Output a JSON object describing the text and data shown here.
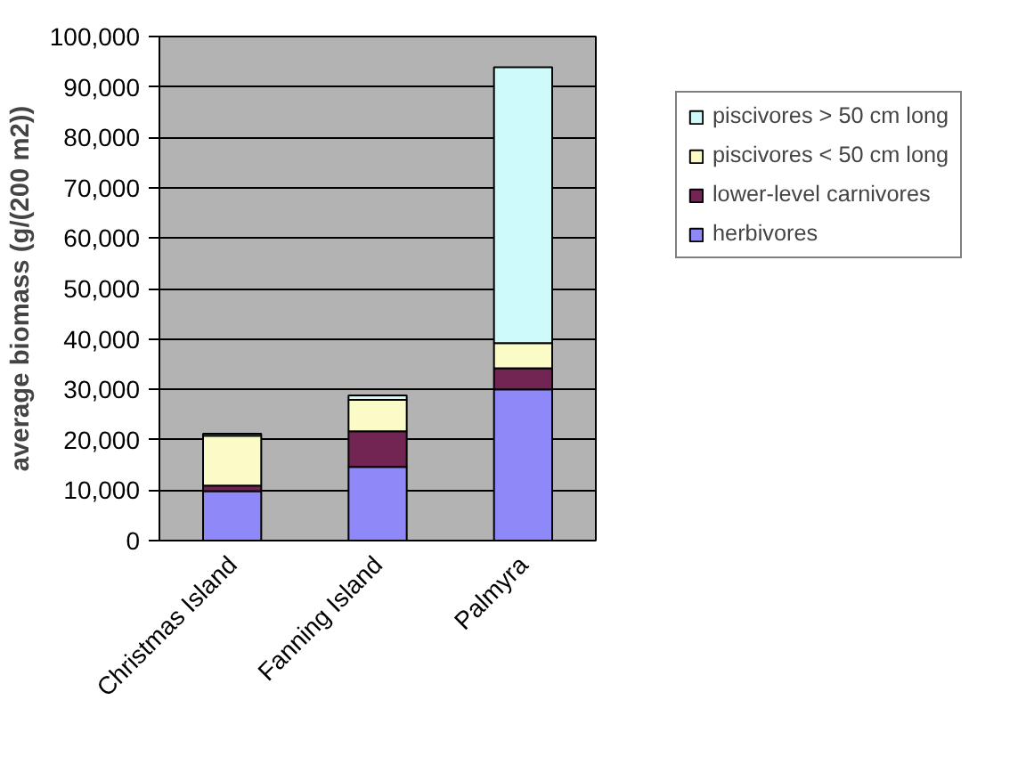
{
  "chart_data": {
    "type": "bar",
    "stacked": true,
    "ylabel": "average biomass (g/(200 m2))",
    "categories": [
      "Christmas Island",
      "Fanning Island",
      "Palmyra"
    ],
    "series": [
      {
        "name": "herbivores",
        "color": "#8f88f8",
        "values": [
          9800,
          14600,
          30000
        ]
      },
      {
        "name": "lower-level carnivores",
        "color": "#722553",
        "values": [
          1100,
          7100,
          4200
        ]
      },
      {
        "name": "piscivores < 50 cm long",
        "color": "#fbfbc8",
        "values": [
          9900,
          6200,
          5000
        ]
      },
      {
        "name": "piscivores > 50 cm long",
        "color": "#cffafb",
        "values": [
          400,
          900,
          54700
        ]
      }
    ],
    "ylim": [
      0,
      100000
    ],
    "yticks": [
      {
        "value": 0,
        "label": "0"
      },
      {
        "value": 10000,
        "label": "10,000"
      },
      {
        "value": 20000,
        "label": "20,000"
      },
      {
        "value": 30000,
        "label": "30,000"
      },
      {
        "value": 40000,
        "label": "40,000"
      },
      {
        "value": 50000,
        "label": "50,000"
      },
      {
        "value": 60000,
        "label": "60,000"
      },
      {
        "value": 70000,
        "label": "70,000"
      },
      {
        "value": 80000,
        "label": "80,000"
      },
      {
        "value": 90000,
        "label": "90,000"
      },
      {
        "value": 100000,
        "label": "100,000"
      }
    ],
    "grid": "y",
    "legend": "right"
  }
}
